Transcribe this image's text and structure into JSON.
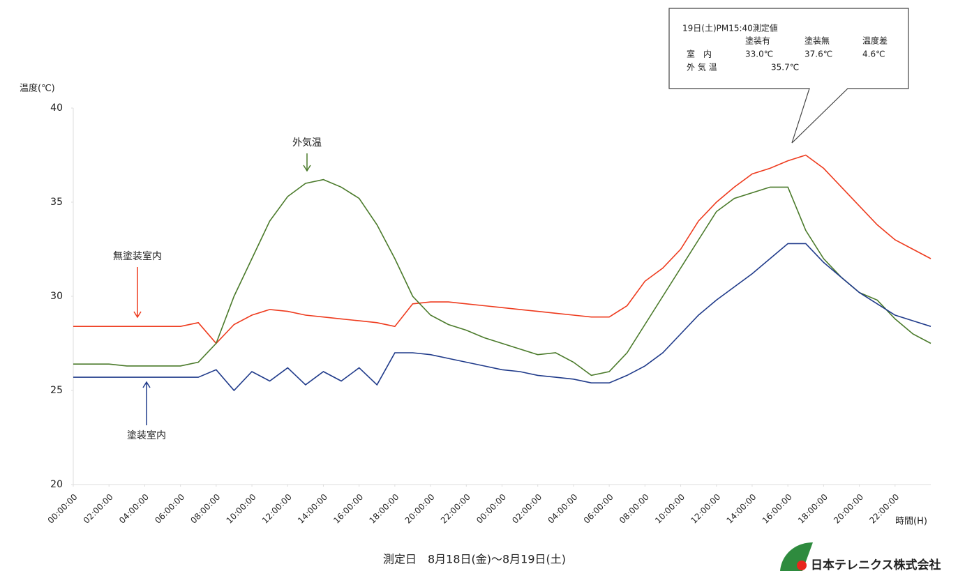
{
  "chart_data": {
    "type": "line",
    "y_label": "温度(℃)",
    "x_label": "時間(H)",
    "footer": "測定日　8月18日(金)〜8月19日(土)",
    "xlim": [
      0,
      48
    ],
    "ylim": [
      20,
      40
    ],
    "yticks": [
      20,
      25,
      30,
      35,
      40
    ],
    "xticks": [
      {
        "value": 0,
        "label": "00:00:00"
      },
      {
        "value": 2,
        "label": "02:00:00"
      },
      {
        "value": 4,
        "label": "04:00:00"
      },
      {
        "value": 6,
        "label": "06:00:00"
      },
      {
        "value": 8,
        "label": "08:00:00"
      },
      {
        "value": 10,
        "label": "10:00:00"
      },
      {
        "value": 12,
        "label": "12:00:00"
      },
      {
        "value": 14,
        "label": "14:00:00"
      },
      {
        "value": 16,
        "label": "16:00:00"
      },
      {
        "value": 18,
        "label": "18:00:00"
      },
      {
        "value": 20,
        "label": "20:00:00"
      },
      {
        "value": 22,
        "label": "22:00:00"
      },
      {
        "value": 24,
        "label": "00:00:00"
      },
      {
        "value": 26,
        "label": "02:00:00"
      },
      {
        "value": 28,
        "label": "04:00:00"
      },
      {
        "value": 30,
        "label": "06:00:00"
      },
      {
        "value": 32,
        "label": "08:00:00"
      },
      {
        "value": 34,
        "label": "10:00:00"
      },
      {
        "value": 36,
        "label": "12:00:00"
      },
      {
        "value": 38,
        "label": "14:00:00"
      },
      {
        "value": 40,
        "label": "16:00:00"
      },
      {
        "value": 42,
        "label": "18:00:00"
      },
      {
        "value": 44,
        "label": "20:00:00"
      },
      {
        "value": 46,
        "label": "22:00:00"
      }
    ],
    "grid": false,
    "x": [
      0,
      1,
      2,
      3,
      4,
      5,
      6,
      7,
      8,
      9,
      10,
      11,
      12,
      13,
      14,
      15,
      16,
      17,
      18,
      19,
      20,
      21,
      22,
      23,
      24,
      25,
      26,
      27,
      28,
      29,
      30,
      31,
      32,
      33,
      34,
      35,
      36,
      37,
      38,
      39,
      40,
      41,
      42,
      43,
      44,
      45,
      46,
      47,
      48
    ],
    "series": [
      {
        "name": "無塗装室内",
        "color": "#ee3b1e",
        "values": [
          28.4,
          28.4,
          28.4,
          28.4,
          28.4,
          28.4,
          28.4,
          28.6,
          27.5,
          28.5,
          29.0,
          29.3,
          29.2,
          29.0,
          28.9,
          28.8,
          28.7,
          28.6,
          28.4,
          29.6,
          29.7,
          29.7,
          29.6,
          29.5,
          29.4,
          29.3,
          29.2,
          29.1,
          29.0,
          28.9,
          28.9,
          29.5,
          30.8,
          31.5,
          32.5,
          34.0,
          35.0,
          35.8,
          36.5,
          36.8,
          37.2,
          37.5,
          36.8,
          35.8,
          34.8,
          33.8,
          33.0,
          32.5,
          32.0
        ]
      },
      {
        "name": "外気温",
        "color": "#4a7a2a",
        "values": [
          26.4,
          26.4,
          26.4,
          26.3,
          26.3,
          26.3,
          26.3,
          26.5,
          27.5,
          30.0,
          32.0,
          34.0,
          35.3,
          36.0,
          36.2,
          35.8,
          35.2,
          33.8,
          32.0,
          30.0,
          29.0,
          28.5,
          28.2,
          27.8,
          27.5,
          27.2,
          26.9,
          27.0,
          26.5,
          25.8,
          26.0,
          27.0,
          28.5,
          30.0,
          31.5,
          33.0,
          34.5,
          35.2,
          35.5,
          35.8,
          35.8,
          33.5,
          32.0,
          31.0,
          30.2,
          29.8,
          28.8,
          28.0,
          27.5
        ]
      },
      {
        "name": "塗装室内",
        "color": "#1f3a8a",
        "values": [
          25.7,
          25.7,
          25.7,
          25.7,
          25.7,
          25.7,
          25.7,
          25.7,
          26.1,
          25.0,
          26.0,
          25.5,
          26.2,
          25.3,
          26.0,
          25.5,
          26.2,
          25.3,
          27.0,
          27.0,
          26.9,
          26.7,
          26.5,
          26.3,
          26.1,
          26.0,
          25.8,
          25.7,
          25.6,
          25.4,
          25.4,
          25.8,
          26.3,
          27.0,
          28.0,
          29.0,
          29.8,
          30.5,
          31.2,
          32.0,
          32.8,
          32.8,
          31.8,
          31.0,
          30.2,
          29.6,
          29.0,
          28.7,
          28.4
        ]
      }
    ],
    "callout": {
      "title": "19日(土)PM15:40測定値",
      "columns": [
        "塗装有",
        "塗装無",
        "温度差"
      ],
      "rows": [
        {
          "label": "室　内",
          "cells": [
            "33.0℃",
            "37.6℃",
            "4.6℃"
          ]
        },
        {
          "label": "外 気 温",
          "cells": [
            "35.7℃"
          ]
        }
      ]
    }
  },
  "company": "日本テレニクス株式会社"
}
